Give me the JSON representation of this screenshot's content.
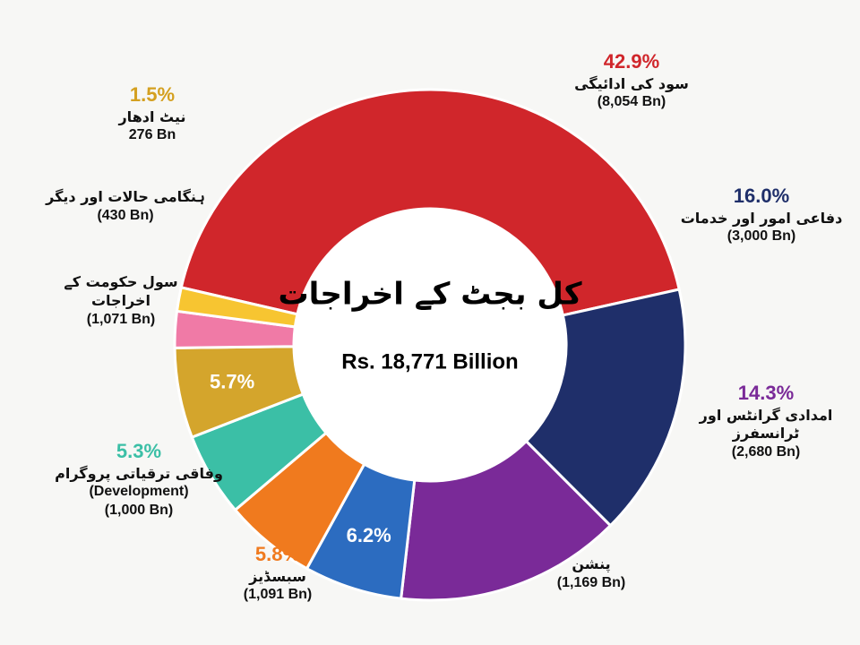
{
  "chart_data": {
    "type": "donut",
    "title": "کل بجٹ کے اخراجات",
    "subtitle": "Rs. 18,771 Billion",
    "categories": [
      "سود کی ادائیگی",
      "دفاعی امور اور خدمات",
      "امدادی گرانٹس اور ٹرانسفرز",
      "پنشن",
      "سبسڈیز",
      "وفاقی ترقیاتی پروگرام",
      "سول حکومت کے اخراجات",
      "ہنگامی حالات اور دیگر",
      "نیٹ ادھار"
    ],
    "category_notes": [
      null,
      null,
      null,
      null,
      null,
      "(Development)",
      null,
      null,
      null
    ],
    "values": [
      42.9,
      16.0,
      14.3,
      6.2,
      5.8,
      5.3,
      5.7,
      2.3,
      1.5
    ],
    "value_labels": [
      "42.9%",
      "16.0%",
      "14.3%",
      "6.2%",
      "5.8%",
      "5.3%",
      "5.7%",
      null,
      "1.5%"
    ],
    "amounts": [
      "(8,054 Bn)",
      "(3,000 Bn)",
      "(2,680 Bn)",
      "(1,169 Bn)",
      "(1,091 Bn)",
      "(1,000 Bn)",
      "(1,071 Bn)",
      "(430 Bn)",
      "276 Bn"
    ],
    "colors": [
      "#d0262b",
      "#1f2f6a",
      "#7a2a98",
      "#2c6cc0",
      "#f07a1e",
      "#3bbfa6",
      "#d4a52c",
      "#f07aa6",
      "#f7c531"
    ]
  }
}
